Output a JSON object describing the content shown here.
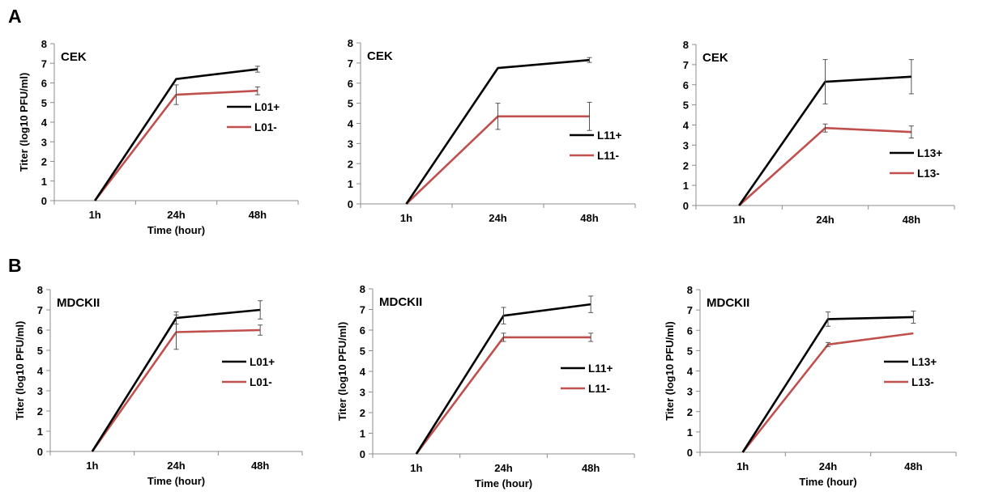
{
  "panel_labels": [
    "A",
    "B"
  ],
  "colors": {
    "plus": "#000000",
    "minus": "#c0504d",
    "axis": "#8c8c8c",
    "errbar": "#444444"
  },
  "chart_data": [
    {
      "type": "line",
      "panel": "A",
      "title": "CEK",
      "categories": [
        "1h",
        "24h",
        "48h"
      ],
      "xlabel": "Time (hour)",
      "ylabel": "Titer (log10 PFU/ml)",
      "ylim": [
        0,
        8
      ],
      "yticks": [
        0,
        1,
        2,
        3,
        4,
        5,
        6,
        7,
        8
      ],
      "grid": false,
      "legend_position": "right",
      "series": [
        {
          "name": "L01+",
          "color": "#000000",
          "values": [
            0,
            6.2,
            6.7
          ],
          "errors": [
            0,
            0,
            0.15
          ]
        },
        {
          "name": "L01-",
          "color": "#c0504d",
          "values": [
            0,
            5.4,
            5.6
          ],
          "errors": [
            0,
            0.5,
            0.2
          ]
        }
      ]
    },
    {
      "type": "line",
      "panel": "A",
      "title": "CEK",
      "categories": [
        "1h",
        "24h",
        "48h"
      ],
      "xlabel": "",
      "ylabel": "",
      "ylim": [
        0,
        8
      ],
      "yticks": [
        0,
        1,
        2,
        3,
        4,
        5,
        6,
        7,
        8
      ],
      "grid": false,
      "legend_position": "right",
      "series": [
        {
          "name": "L11+",
          "color": "#000000",
          "values": [
            0,
            6.75,
            7.15
          ],
          "errors": [
            0,
            0,
            0.12
          ]
        },
        {
          "name": "L11-",
          "color": "#c0504d",
          "values": [
            0,
            4.35,
            4.35
          ],
          "errors": [
            0,
            0.65,
            0.7
          ]
        }
      ]
    },
    {
      "type": "line",
      "panel": "A",
      "title": "CEK",
      "categories": [
        "1h",
        "24h",
        "48h"
      ],
      "xlabel": "",
      "ylabel": "",
      "ylim": [
        0,
        8
      ],
      "yticks": [
        0,
        1,
        2,
        3,
        4,
        5,
        6,
        7,
        8
      ],
      "grid": false,
      "legend_position": "right",
      "series": [
        {
          "name": "L13+",
          "color": "#000000",
          "values": [
            0,
            6.15,
            6.4
          ],
          "errors": [
            0,
            1.1,
            0.85
          ]
        },
        {
          "name": "L13-",
          "color": "#c0504d",
          "values": [
            0,
            3.85,
            3.65
          ],
          "errors": [
            0,
            0.2,
            0.3
          ]
        }
      ]
    },
    {
      "type": "line",
      "panel": "B",
      "title": "MDCKII",
      "categories": [
        "1h",
        "24h",
        "48h"
      ],
      "xlabel": "Time (hour)",
      "ylabel": "Titer (log10 PFU/ml)",
      "ylim": [
        0,
        8
      ],
      "yticks": [
        0,
        1,
        2,
        3,
        4,
        5,
        6,
        7,
        8
      ],
      "grid": false,
      "legend_position": "right",
      "series": [
        {
          "name": "L01+",
          "color": "#000000",
          "values": [
            0,
            6.6,
            7.0
          ],
          "errors": [
            0,
            0.3,
            0.45
          ]
        },
        {
          "name": "L01-",
          "color": "#c0504d",
          "values": [
            0,
            5.9,
            6.0
          ],
          "errors": [
            0,
            0.85,
            0.25
          ]
        }
      ]
    },
    {
      "type": "line",
      "panel": "B",
      "title": "MDCKII",
      "categories": [
        "1h",
        "24h",
        "48h"
      ],
      "xlabel": "Time (hour)",
      "ylabel": "Titer (log10 PFU/ml)",
      "ylim": [
        0,
        8
      ],
      "yticks": [
        0,
        1,
        2,
        3,
        4,
        5,
        6,
        7,
        8
      ],
      "grid": false,
      "legend_position": "right",
      "series": [
        {
          "name": "L11+",
          "color": "#000000",
          "values": [
            0,
            6.7,
            7.25
          ],
          "errors": [
            0,
            0.4,
            0.4
          ]
        },
        {
          "name": "L11-",
          "color": "#c0504d",
          "values": [
            0,
            5.65,
            5.65
          ],
          "errors": [
            0,
            0.2,
            0.2
          ]
        }
      ]
    },
    {
      "type": "line",
      "panel": "B",
      "title": "MDCKII",
      "categories": [
        "1h",
        "24h",
        "48h"
      ],
      "xlabel": "Time (hour)",
      "ylabel": "Titer (log10 PFU/ml)",
      "ylim": [
        0,
        8
      ],
      "yticks": [
        0,
        1,
        2,
        3,
        4,
        5,
        6,
        7,
        8
      ],
      "grid": false,
      "legend_position": "right",
      "series": [
        {
          "name": "L13+",
          "color": "#000000",
          "values": [
            0,
            6.55,
            6.65
          ],
          "errors": [
            0,
            0.35,
            0.3
          ]
        },
        {
          "name": "L13-",
          "color": "#c0504d",
          "values": [
            0,
            5.3,
            5.85
          ],
          "errors": [
            0,
            0.1,
            0
          ]
        }
      ]
    }
  ]
}
